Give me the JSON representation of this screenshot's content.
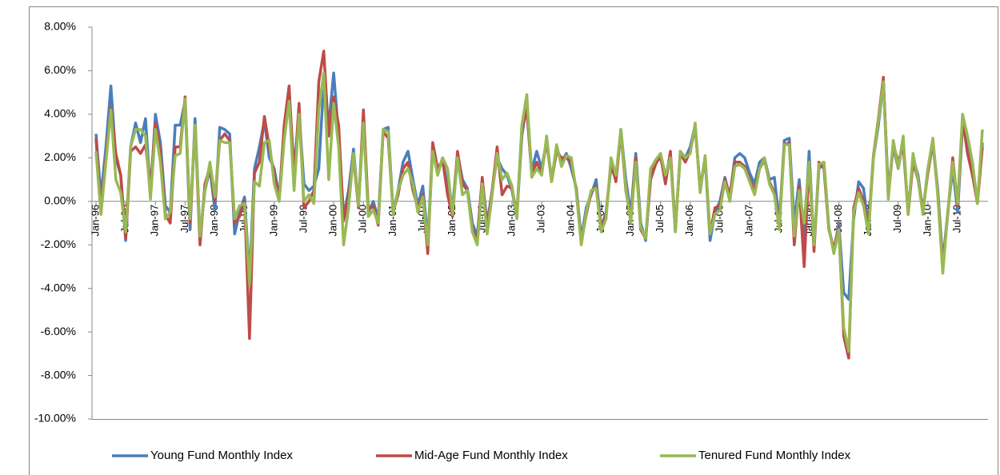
{
  "chart_data": {
    "type": "line",
    "categories": [
      "Jan-96",
      null,
      null,
      null,
      null,
      null,
      "Jul-96",
      null,
      null,
      null,
      null,
      null,
      "Jan-97",
      null,
      null,
      null,
      null,
      null,
      "Jul-97",
      null,
      null,
      null,
      null,
      null,
      "Jan-98",
      null,
      null,
      null,
      null,
      null,
      "Jul-98",
      null,
      null,
      null,
      null,
      null,
      "Jan-99",
      null,
      null,
      null,
      null,
      null,
      "Jul-99",
      null,
      null,
      null,
      null,
      null,
      "Jan-00",
      null,
      null,
      null,
      null,
      null,
      "Jul-00",
      null,
      null,
      null,
      null,
      null,
      "Jan-01",
      null,
      null,
      null,
      null,
      null,
      "Jul-01",
      null,
      null,
      null,
      null,
      null,
      "Jan-02",
      null,
      null,
      null,
      null,
      null,
      "Jul-02",
      null,
      null,
      null,
      null,
      null,
      "Jan-03",
      null,
      null,
      null,
      null,
      null,
      "Jul-03",
      null,
      null,
      null,
      null,
      null,
      "Jan-04",
      null,
      null,
      null,
      null,
      null,
      "Jul-04",
      null,
      null,
      null,
      null,
      null,
      "Jan-05",
      null,
      null,
      null,
      null,
      null,
      "Jul-05",
      null,
      null,
      null,
      null,
      null,
      "Jan-06",
      null,
      null,
      null,
      null,
      null,
      "Jul-06",
      null,
      null,
      null,
      null,
      null,
      "Jan-07",
      null,
      null,
      null,
      null,
      null,
      "Jul-07",
      null,
      null,
      null,
      null,
      null,
      "Jan-08",
      null,
      null,
      null,
      null,
      null,
      "Jul-08",
      null,
      null,
      null,
      null,
      null,
      "Jan-09",
      null,
      null,
      null,
      null,
      null,
      "Jul-09",
      null,
      null,
      null,
      null,
      null,
      "Jan-10",
      null,
      null,
      null,
      null,
      null,
      "Jul-10",
      null,
      null,
      null,
      null,
      null
    ],
    "series": [
      {
        "name": "Young Fund Monthly Index",
        "color": "#4a7ebb",
        "values": [
          3.1,
          0.2,
          2.5,
          5.3,
          2.0,
          1.2,
          -1.8,
          2.5,
          3.6,
          2.7,
          3.8,
          0.3,
          4.0,
          2.7,
          -0.2,
          -0.5,
          3.5,
          3.5,
          4.6,
          -1.3,
          3.8,
          -1.6,
          0.5,
          1.5,
          -0.4,
          3.4,
          3.3,
          3.1,
          -1.5,
          -0.5,
          0.2,
          -3.5,
          1.5,
          2.5,
          3.7,
          2.0,
          1.5,
          0.2,
          3.0,
          5.0,
          1.5,
          4.0,
          0.8,
          0.5,
          0.7,
          1.5,
          5.5,
          3.5,
          5.9,
          3.0,
          -0.7,
          0.5,
          2.4,
          -0.2,
          3.7,
          -0.5,
          0.0,
          -0.8,
          3.3,
          3.4,
          -0.5,
          0.5,
          1.8,
          2.3,
          1.0,
          -0.2,
          0.7,
          -1.8,
          2.5,
          1.3,
          2.0,
          0.6,
          -0.3,
          2.2,
          1.0,
          0.6,
          -1.0,
          -1.6,
          1.0,
          -1.0,
          0.5,
          2.0,
          1.5,
          1.2,
          0.5,
          -0.7,
          3.0,
          4.5,
          1.4,
          2.3,
          1.5,
          2.8,
          1.0,
          2.5,
          1.8,
          2.2,
          1.5,
          0.6,
          -1.7,
          -0.3,
          0.3,
          1.0,
          -1.2,
          -0.5,
          1.6,
          1.0,
          3.3,
          1.0,
          -0.6,
          2.2,
          -1.0,
          -1.8,
          1.2,
          1.8,
          2.0,
          1.0,
          2.2,
          -1.4,
          2.3,
          2.0,
          2.5,
          3.5,
          0.5,
          2.0,
          -1.8,
          -0.5,
          0.0,
          1.1,
          0.2,
          2.0,
          2.2,
          2.0,
          1.3,
          0.8,
          1.8,
          2.0,
          1.0,
          1.1,
          -1.0,
          2.8,
          2.9,
          -1.0,
          1.0,
          -1.7,
          2.3,
          -2.1,
          1.5,
          1.8,
          -1.2,
          -2.3,
          -1.0,
          -4.2,
          -4.5,
          -0.8,
          0.9,
          0.6,
          -1.2,
          2.0,
          3.5,
          5.5,
          0.5,
          2.5,
          1.5,
          2.8,
          -0.5,
          2.0,
          1.2,
          -0.5,
          1.5,
          2.8,
          0.5,
          -2.8,
          -0.5,
          1.5,
          -0.5,
          3.5,
          2.5,
          1.5,
          0.0,
          2.7
        ]
      },
      {
        "name": "Mid-Age Fund Monthly Index",
        "color": "#be4b48",
        "values": [
          2.9,
          -0.5,
          2.0,
          4.3,
          2.2,
          1.2,
          -1.7,
          2.3,
          2.5,
          2.2,
          2.6,
          0.6,
          3.6,
          2.3,
          -0.6,
          -1.0,
          2.5,
          2.5,
          4.8,
          -1.0,
          3.5,
          -2.0,
          0.8,
          1.6,
          0.0,
          2.8,
          3.1,
          2.8,
          -1.0,
          -0.7,
          0.0,
          -6.3,
          1.3,
          1.8,
          3.9,
          2.5,
          1.2,
          0.1,
          3.5,
          5.3,
          1.0,
          4.5,
          -0.3,
          0.0,
          0.5,
          5.5,
          6.9,
          3.0,
          4.8,
          3.5,
          -0.9,
          0.2,
          2.0,
          -0.3,
          4.2,
          -0.4,
          -0.2,
          -1.1,
          3.2,
          2.9,
          -0.5,
          0.3,
          1.5,
          1.8,
          0.5,
          -0.3,
          0.3,
          -2.4,
          2.7,
          1.5,
          1.9,
          0.3,
          -0.7,
          2.3,
          0.8,
          0.5,
          -1.3,
          -1.8,
          1.1,
          -1.3,
          0.5,
          2.5,
          0.3,
          0.7,
          0.6,
          -0.6,
          3.3,
          4.2,
          1.2,
          1.8,
          1.3,
          2.8,
          0.9,
          2.3,
          2.0,
          2.0,
          1.8,
          0.5,
          -1.9,
          -0.6,
          0.4,
          0.7,
          -1.3,
          -0.6,
          1.8,
          0.9,
          3.2,
          0.5,
          -0.8,
          2.0,
          -1.3,
          -1.7,
          1.0,
          1.7,
          2.1,
          0.8,
          2.3,
          -1.3,
          2.2,
          1.8,
          2.3,
          3.4,
          0.6,
          2.0,
          -1.5,
          -0.3,
          -0.2,
          1.0,
          0.3,
          1.8,
          1.8,
          1.6,
          1.0,
          0.5,
          1.5,
          1.9,
          0.9,
          0.4,
          -1.1,
          2.6,
          2.7,
          -2.0,
          0.7,
          -3.0,
          1.8,
          -2.3,
          1.8,
          1.5,
          -1.3,
          -2.2,
          -1.2,
          -6.2,
          -7.2,
          -0.3,
          0.6,
          0.0,
          -1.3,
          2.1,
          3.8,
          5.7,
          0.2,
          2.6,
          1.8,
          2.6,
          -0.6,
          1.8,
          1.0,
          -0.4,
          1.3,
          2.7,
          0.3,
          -3.0,
          -0.6,
          2.0,
          -0.2,
          3.8,
          2.2,
          1.2,
          -0.1,
          2.5
        ]
      },
      {
        "name": "Tenured Fund Monthly Index",
        "color": "#98b954",
        "values": [
          2.3,
          -0.6,
          1.8,
          4.2,
          1.0,
          0.4,
          -1.4,
          2.5,
          3.3,
          3.3,
          3.0,
          0.1,
          3.3,
          1.8,
          -0.8,
          -0.5,
          2.1,
          2.2,
          4.7,
          -0.8,
          3.5,
          -1.6,
          0.5,
          1.8,
          0.2,
          2.8,
          2.7,
          2.7,
          -0.8,
          -0.2,
          -0.1,
          -3.8,
          0.9,
          0.7,
          2.7,
          2.8,
          0.8,
          0.0,
          2.8,
          4.6,
          0.5,
          4.0,
          0.0,
          0.3,
          -0.1,
          4.2,
          5.9,
          1.0,
          4.5,
          2.5,
          -2.0,
          -0.3,
          2.2,
          -0.2,
          3.6,
          -0.7,
          -0.4,
          -1.0,
          3.3,
          3.2,
          -0.6,
          0.5,
          1.2,
          1.5,
          0.8,
          -0.5,
          0.2,
          -2.0,
          2.3,
          1.2,
          2.0,
          1.5,
          -0.6,
          2.0,
          0.3,
          0.5,
          -1.4,
          -2.0,
          0.8,
          -1.5,
          0.3,
          2.2,
          1.0,
          1.3,
          0.7,
          -0.8,
          3.5,
          4.9,
          1.1,
          1.5,
          1.2,
          3.0,
          0.9,
          2.6,
          1.6,
          2.1,
          2.0,
          0.4,
          -2.0,
          -0.5,
          0.5,
          0.6,
          -1.4,
          -0.8,
          2.0,
          1.2,
          3.3,
          0.6,
          -1.0,
          1.8,
          -1.2,
          -1.7,
          1.5,
          1.9,
          2.2,
          1.2,
          2.0,
          -1.4,
          2.3,
          2.0,
          2.2,
          3.6,
          0.4,
          2.1,
          -1.5,
          -0.6,
          -0.4,
          0.9,
          0.0,
          1.6,
          1.7,
          1.5,
          0.9,
          0.3,
          1.5,
          2.0,
          0.8,
          0.3,
          -1.3,
          2.6,
          2.6,
          -1.6,
          0.5,
          -1.0,
          1.8,
          -2.0,
          1.7,
          1.8,
          -1.2,
          -2.4,
          -1.3,
          -5.8,
          -6.9,
          -0.5,
          0.4,
          -0.2,
          -1.5,
          2.0,
          3.7,
          5.5,
          0.1,
          2.8,
          1.5,
          3.0,
          -0.6,
          2.2,
          1.0,
          -0.6,
          1.5,
          2.9,
          0.2,
          -3.3,
          -0.5,
          1.8,
          -0.1,
          4.0,
          3.0,
          1.8,
          -0.1,
          3.3
        ]
      }
    ],
    "ylim": [
      -10,
      8
    ],
    "yticks": [
      {
        "value": -10,
        "label": "-10.00%"
      },
      {
        "value": -8,
        "label": "-8.00%"
      },
      {
        "value": -6,
        "label": "-6.00%"
      },
      {
        "value": -4,
        "label": "-4.00%"
      },
      {
        "value": -2,
        "label": "-2.00%"
      },
      {
        "value": 0,
        "label": "0.00%"
      },
      {
        "value": 2,
        "label": "2.00%"
      },
      {
        "value": 4,
        "label": "4.00%"
      },
      {
        "value": 6,
        "label": "6.00%"
      },
      {
        "value": 8,
        "label": "8.00%"
      }
    ],
    "grid": false,
    "legend": "bottom"
  }
}
